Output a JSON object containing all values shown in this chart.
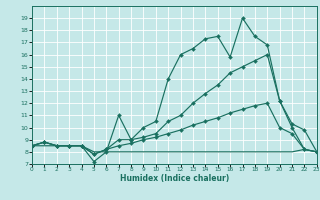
{
  "xlabel": "Humidex (Indice chaleur)",
  "bg_color": "#c5e8e8",
  "grid_color": "#ffffff",
  "line_color": "#1a7060",
  "xlim": [
    0,
    23
  ],
  "ylim": [
    7,
    20
  ],
  "xtick_vals": [
    0,
    1,
    2,
    3,
    4,
    5,
    6,
    7,
    8,
    9,
    10,
    11,
    12,
    13,
    14,
    15,
    16,
    17,
    18,
    19,
    20,
    21,
    22,
    23
  ],
  "xtick_labels": [
    "0",
    "1",
    "2",
    "3",
    "4",
    "5",
    "6",
    "7",
    "8",
    "9",
    "10",
    "11",
    "12",
    "13",
    "14",
    "15",
    "16",
    "17",
    "18",
    "19",
    "20",
    "21",
    "22",
    "23"
  ],
  "ytick_vals": [
    7,
    8,
    9,
    10,
    11,
    12,
    13,
    14,
    15,
    16,
    17,
    18,
    19
  ],
  "ytick_labels": [
    "7",
    "8",
    "9",
    "10",
    "11",
    "12",
    "13",
    "14",
    "15",
    "16",
    "17",
    "18",
    "19"
  ],
  "line1_x": [
    0,
    1,
    2,
    3,
    4,
    5,
    6,
    7,
    8,
    9,
    10,
    11,
    12,
    13,
    14,
    15,
    16,
    17,
    18,
    19,
    20,
    21,
    22,
    23
  ],
  "line1_y": [
    8.5,
    8.8,
    8.5,
    8.5,
    8.5,
    7.2,
    8.0,
    11.0,
    9.0,
    10.0,
    10.5,
    14.0,
    16.0,
    16.5,
    17.3,
    17.5,
    15.8,
    19.0,
    17.5,
    16.8,
    12.2,
    10.3,
    9.8,
    8.0
  ],
  "line2_x": [
    0,
    1,
    2,
    3,
    4,
    5,
    6,
    7,
    8,
    9,
    10,
    11,
    12,
    13,
    14,
    15,
    16,
    17,
    18,
    19,
    20,
    21,
    22,
    23
  ],
  "line2_y": [
    8.5,
    8.8,
    8.5,
    8.5,
    8.5,
    7.8,
    8.2,
    9.0,
    9.0,
    9.2,
    9.5,
    10.5,
    11.0,
    12.0,
    12.8,
    13.5,
    14.5,
    15.0,
    15.5,
    16.0,
    12.2,
    10.0,
    8.2,
    8.0
  ],
  "line3_x": [
    0,
    1,
    2,
    3,
    4,
    5,
    6,
    7,
    8,
    9,
    10,
    11,
    12,
    13,
    14,
    15,
    16,
    17,
    18,
    19,
    20,
    21,
    22,
    23
  ],
  "line3_y": [
    8.5,
    8.8,
    8.5,
    8.5,
    8.5,
    7.8,
    8.2,
    8.5,
    8.7,
    9.0,
    9.2,
    9.5,
    9.8,
    10.2,
    10.5,
    10.8,
    11.2,
    11.5,
    11.8,
    12.0,
    10.0,
    9.5,
    8.2,
    8.0
  ],
  "line4_x": [
    0,
    1,
    2,
    3,
    4,
    5,
    6,
    7,
    8,
    9,
    10,
    11,
    12,
    13,
    14,
    15,
    16,
    17,
    18,
    19,
    20,
    21,
    22,
    23
  ],
  "line4_y": [
    8.5,
    8.5,
    8.5,
    8.5,
    8.5,
    8.0,
    8.0,
    8.0,
    8.0,
    8.0,
    8.0,
    8.0,
    8.0,
    8.0,
    8.0,
    8.0,
    8.0,
    8.0,
    8.0,
    8.0,
    8.0,
    8.0,
    8.2,
    8.0
  ]
}
